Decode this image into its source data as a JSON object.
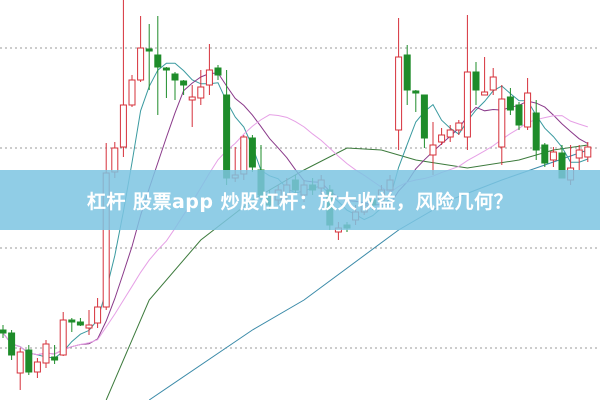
{
  "banner": {
    "title": "杠杆 股票app 炒股杠杆：放大收益，风险几何？"
  },
  "colors": {
    "up": "#d6303a",
    "down": "#1e8c2a",
    "ma_fast": "#3a9aa0",
    "ma_mid": "#8a3a8a",
    "ma_slow": "#e6a0e6",
    "ma_long": "#3c7a3c",
    "ma_longest": "#3a8aa8",
    "grid": "#999999",
    "banner": "#7dc4e2"
  },
  "chart_data": {
    "type": "candlestick",
    "title": "",
    "xlabel": "",
    "ylabel": "",
    "ylim": [
      0,
      400
    ],
    "grid": true,
    "grid_levels": [
      52,
      152,
      252,
      352
    ],
    "up_color": "red",
    "down_color": "green",
    "candles": [
      [
        70,
        75,
        62,
        67
      ],
      [
        67,
        70,
        40,
        45
      ],
      [
        27,
        52,
        10,
        48
      ],
      [
        50,
        55,
        25,
        28
      ],
      [
        28,
        42,
        22,
        38
      ],
      [
        37,
        60,
        32,
        56
      ],
      [
        43,
        55,
        36,
        40
      ],
      [
        45,
        88,
        44,
        80
      ],
      [
        80,
        82,
        68,
        78
      ],
      [
        78,
        82,
        74,
        75
      ],
      [
        72,
        90,
        65,
        75
      ],
      [
        77,
        102,
        72,
        93
      ],
      [
        93,
        257,
        90,
        227
      ],
      [
        228,
        258,
        222,
        252
      ],
      [
        253,
        400,
        243,
        295
      ],
      [
        295,
        325,
        293,
        320
      ],
      [
        320,
        384,
        318,
        352
      ],
      [
        351,
        376,
        310,
        349
      ],
      [
        345,
        384,
        285,
        333
      ],
      [
        332,
        333,
        302,
        330
      ],
      [
        326,
        328,
        300,
        320
      ],
      [
        319,
        320,
        305,
        315
      ],
      [
        300,
        315,
        273,
        303
      ],
      [
        302,
        330,
        295,
        313
      ],
      [
        315,
        356,
        305,
        330
      ],
      [
        332,
        335,
        320,
        325
      ],
      [
        305,
        330,
        215,
        222
      ],
      [
        222,
        253,
        218,
        225
      ],
      [
        226,
        265,
        220,
        263
      ],
      [
        262,
        265,
        228,
        233
      ],
      [
        230,
        255,
        200,
        205
      ],
      [
        205,
        210,
        190,
        195
      ],
      [
        200,
        215,
        195,
        210
      ],
      [
        205,
        222,
        200,
        215
      ],
      [
        220,
        225,
        205,
        210
      ],
      [
        205,
        220,
        198,
        215
      ],
      [
        215,
        222,
        205,
        210
      ],
      [
        212,
        225,
        205,
        220
      ],
      [
        210,
        215,
        170,
        175
      ],
      [
        168,
        178,
        160,
        172
      ],
      [
        175,
        178,
        168,
        172
      ],
      [
        180,
        195,
        175,
        188
      ],
      [
        188,
        200,
        185,
        195
      ],
      [
        200,
        203,
        190,
        195
      ],
      [
        200,
        215,
        195,
        210
      ],
      [
        210,
        225,
        205,
        220
      ],
      [
        270,
        382,
        250,
        343
      ],
      [
        345,
        355,
        295,
        310
      ],
      [
        309,
        310,
        288,
        307
      ],
      [
        305,
        305,
        252,
        262
      ],
      [
        245,
        278,
        225,
        255
      ],
      [
        258,
        272,
        255,
        265
      ],
      [
        263,
        275,
        258,
        270
      ],
      [
        270,
        280,
        265,
        277
      ],
      [
        263,
        385,
        250,
        328
      ],
      [
        328,
        338,
        295,
        310
      ],
      [
        305,
        343,
        305,
        308
      ],
      [
        310,
        332,
        305,
        323
      ],
      [
        253,
        315,
        235,
        301
      ],
      [
        303,
        312,
        285,
        290
      ],
      [
        295,
        298,
        270,
        275
      ],
      [
        273,
        322,
        270,
        307
      ],
      [
        287,
        300,
        240,
        250
      ],
      [
        255,
        257,
        233,
        237
      ],
      [
        240,
        253,
        233,
        248
      ],
      [
        247,
        255,
        222,
        222
      ],
      [
        220,
        255,
        215,
        232
      ],
      [
        242,
        255,
        230,
        250
      ],
      [
        243,
        258,
        238,
        253
      ]
    ],
    "candle_fields": [
      "open",
      "high",
      "low",
      "close"
    ],
    "moving_averages": [
      {
        "period": 5,
        "color": "ma_fast"
      },
      {
        "period": 10,
        "color": "ma_mid"
      },
      {
        "period": 20,
        "color": "ma_slow"
      }
    ],
    "long_lines": [
      {
        "color": "ma_long",
        "points": [
          [
            12,
            0
          ],
          [
            17,
            100
          ],
          [
            23,
            160
          ],
          [
            29,
            200
          ],
          [
            35,
            230
          ],
          [
            40,
            252
          ],
          [
            44,
            250
          ],
          [
            48,
            240
          ],
          [
            54,
            232
          ],
          [
            60,
            240
          ],
          [
            64,
            250
          ],
          [
            68,
            255
          ]
        ]
      },
      {
        "color": "ma_longest",
        "points": [
          [
            17,
            0
          ],
          [
            29,
            70
          ],
          [
            35,
            100
          ],
          [
            46,
            170
          ],
          [
            52,
            200
          ],
          [
            58,
            220
          ],
          [
            63,
            235
          ],
          [
            68,
            250
          ]
        ]
      }
    ]
  }
}
